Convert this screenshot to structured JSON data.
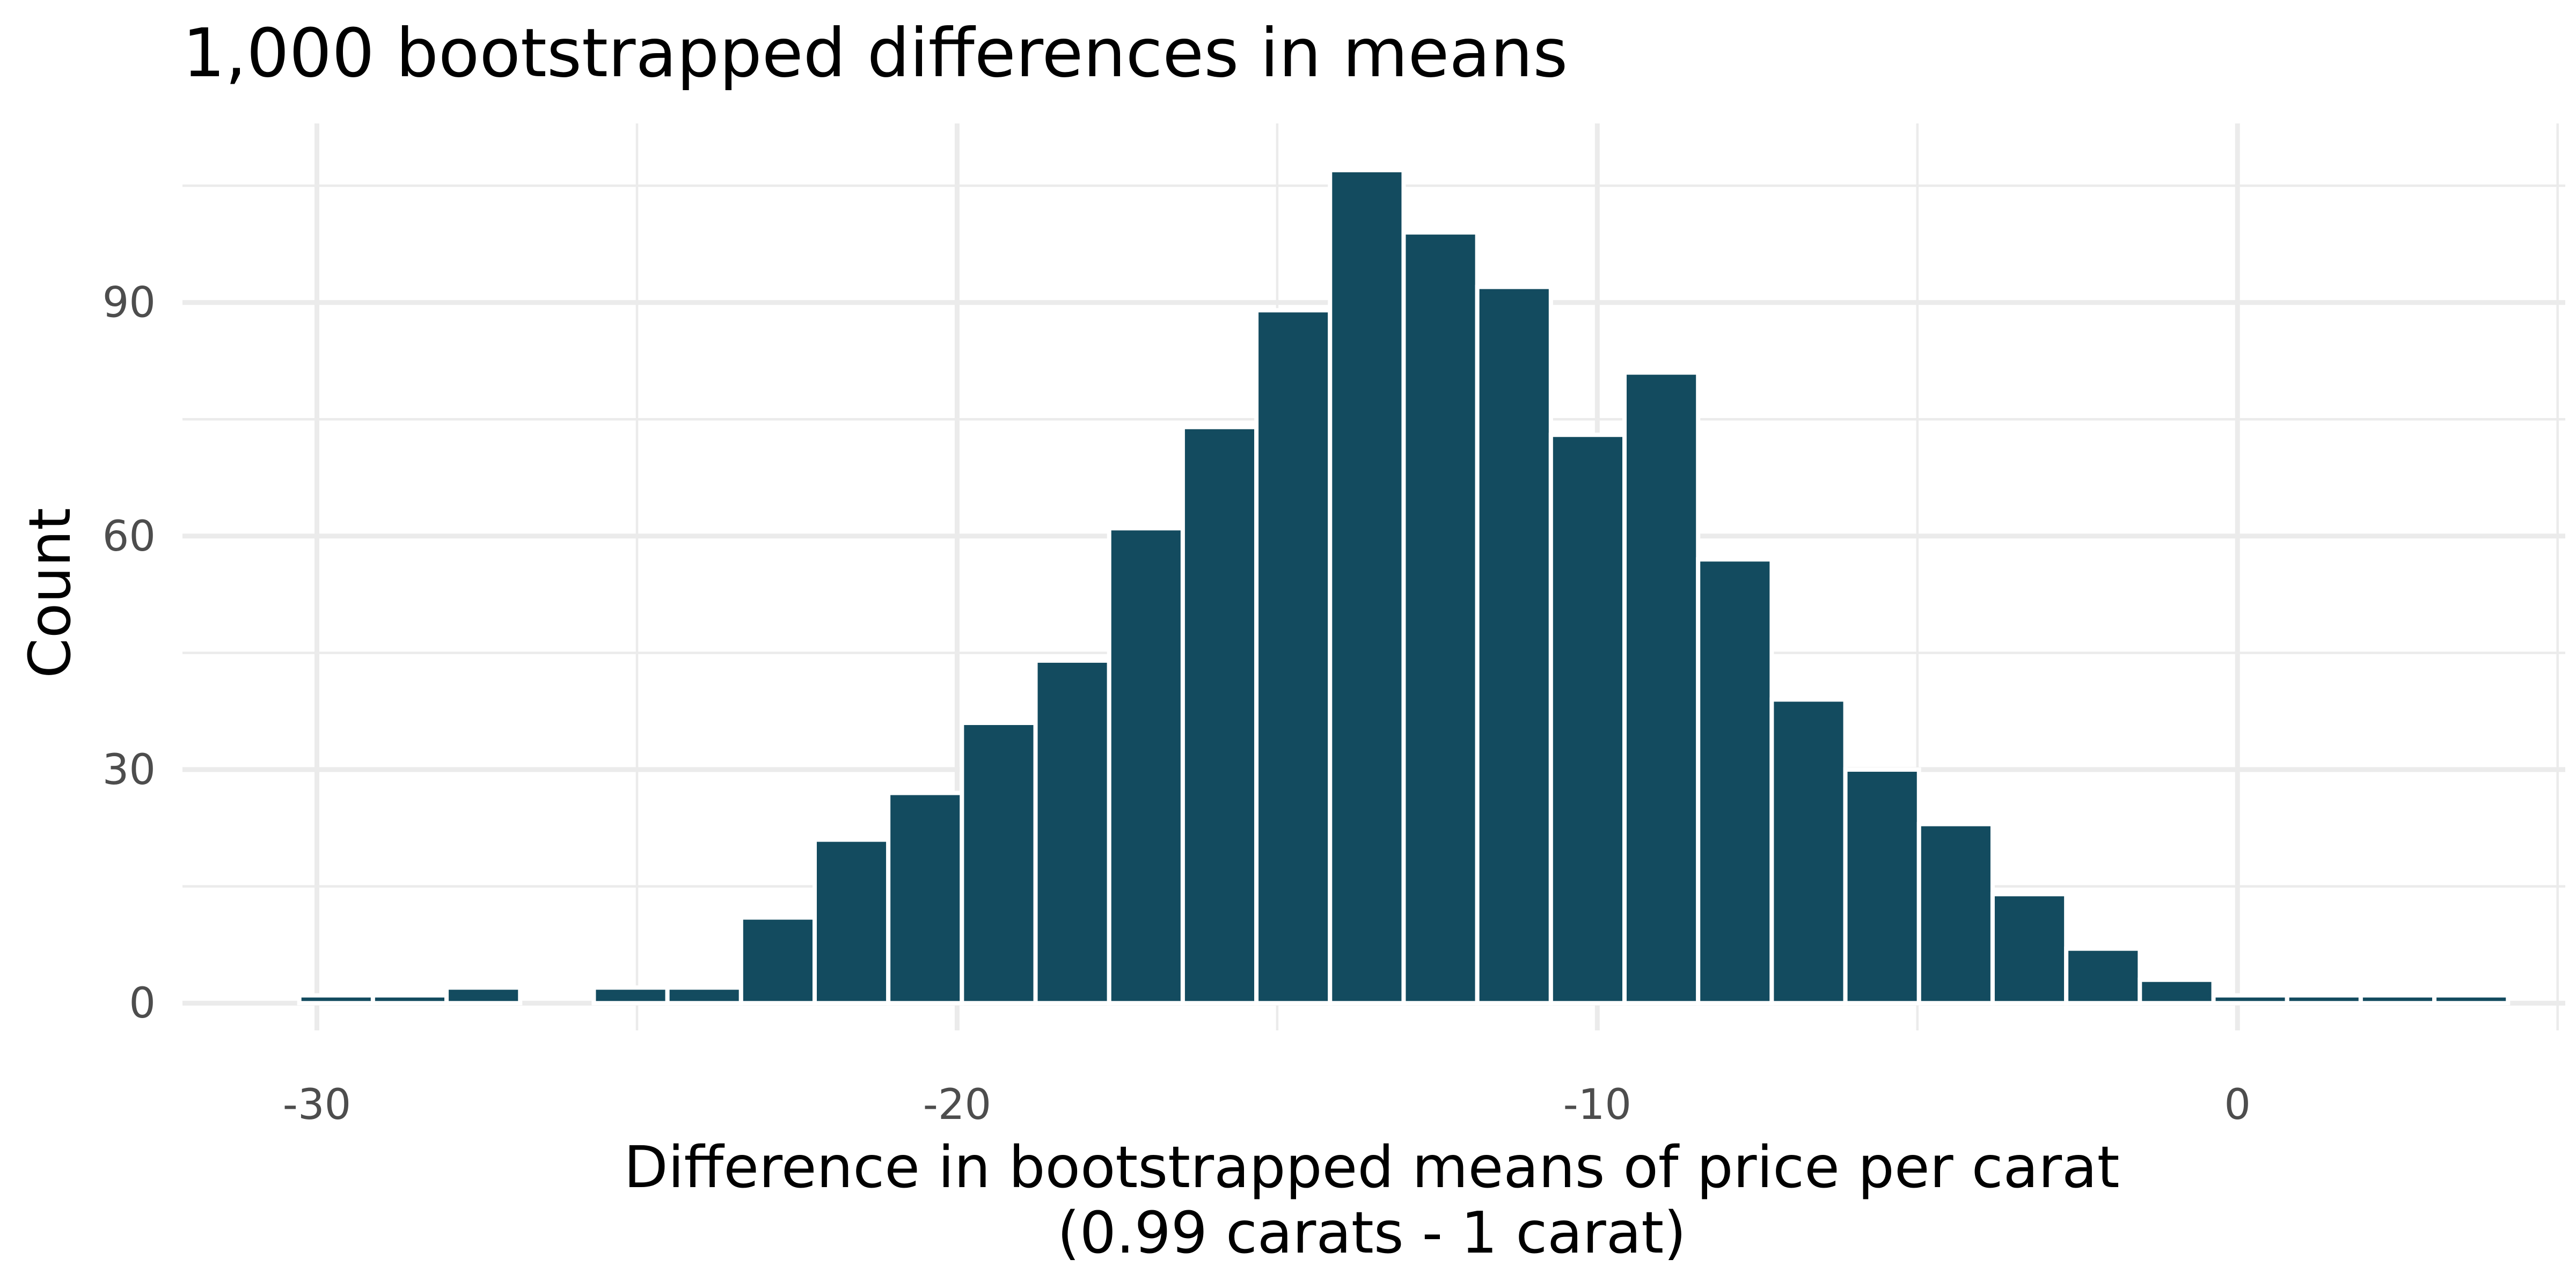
{
  "chart_data": {
    "type": "bar",
    "title": "1,000 bootstrapped differences in means",
    "xlabel_line1": "Difference in bootstrapped means of price per carat",
    "xlabel_line2": "(0.99 carats - 1 carat)",
    "ylabel": "Count",
    "xlim": [
      -32.1,
      5.12
    ],
    "ylim": [
      -3.5,
      113
    ],
    "x_ticks": [
      -30,
      -20,
      -10,
      0
    ],
    "x_tick_labels": [
      "-30",
      "-20",
      "-10",
      "0"
    ],
    "x_minor_ticks": [
      -25,
      -15,
      -5,
      5
    ],
    "y_ticks": [
      0,
      30,
      60,
      90
    ],
    "y_tick_labels": [
      "0",
      "30",
      "60",
      "90"
    ],
    "y_minor_ticks": [
      15,
      45,
      75,
      105
    ],
    "bin_width": 1.15,
    "bin_centers": [
      -29.7,
      -28.55,
      -27.4,
      -26.25,
      -25.1,
      -23.95,
      -22.8,
      -21.65,
      -20.5,
      -19.35,
      -18.2,
      -17.05,
      -15.9,
      -14.75,
      -13.6,
      -12.45,
      -11.3,
      -10.15,
      -9.0,
      -7.85,
      -6.7,
      -5.55,
      -4.4,
      -3.25,
      -2.1,
      -0.95,
      0.2,
      1.35,
      2.5,
      3.65
    ],
    "counts": [
      1,
      1,
      2,
      0,
      2,
      2,
      11,
      21,
      27,
      36,
      44,
      61,
      74,
      89,
      107,
      99,
      92,
      73,
      81,
      57,
      39,
      30,
      23,
      14,
      7,
      3,
      1,
      1,
      1,
      1
    ],
    "bar_color": "#134b5f",
    "grid": true,
    "legend": "none"
  }
}
